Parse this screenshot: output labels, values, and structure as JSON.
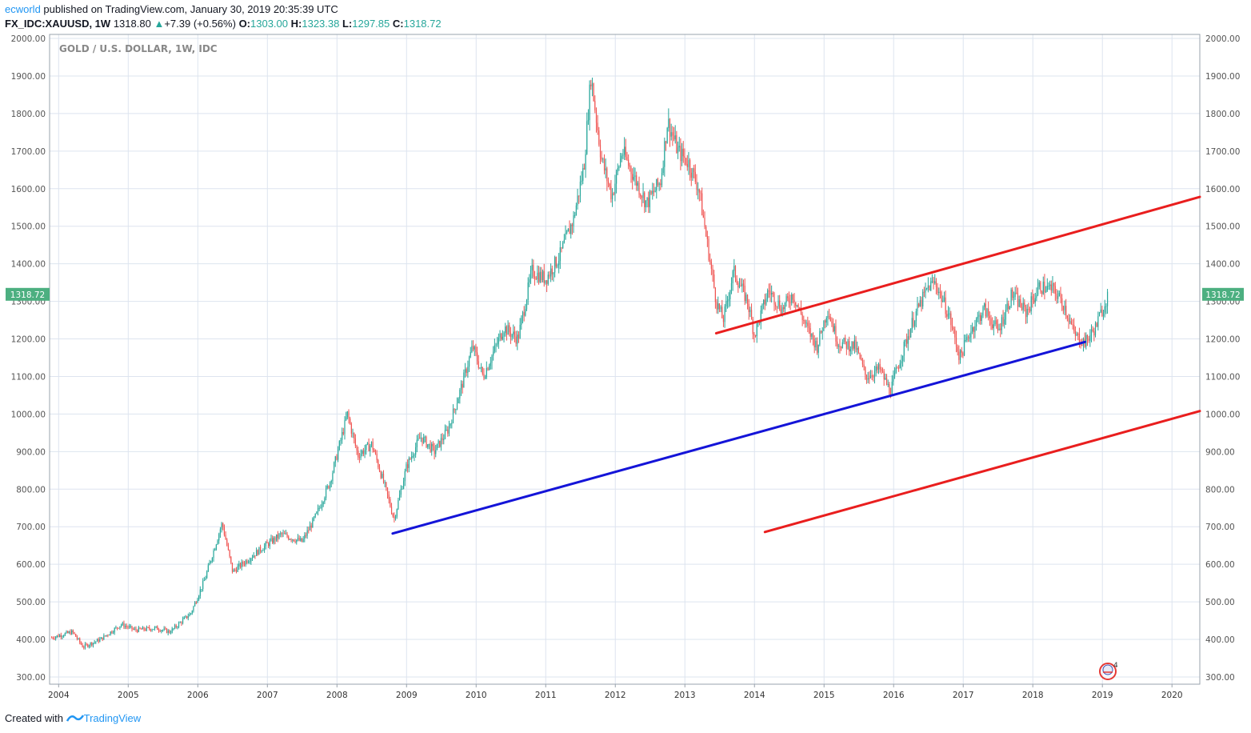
{
  "header": {
    "author": "ecworld",
    "published": "published on TradingView.com, January 30, 2019 20:35:39 UTC",
    "symbol": "FX_IDC:XAUUSD, 1W",
    "last": "1318.80",
    "arrow": "▲",
    "change": "+7.39 (+0.56%)",
    "open_label": "O:",
    "open": "1303.00",
    "high_label": "H:",
    "high": "1323.38",
    "low_label": "L:",
    "low": "1297.85",
    "close_label": "C:",
    "close": "1318.72"
  },
  "footer": {
    "created": "Created with",
    "brand": "TradingView"
  },
  "colors": {
    "up": "#26a69a",
    "down": "#ef5350",
    "red_line": "#e91e1e",
    "blue_line": "#1414d8",
    "grid": "#dde4ef"
  },
  "chart_data": {
    "type": "candlestick",
    "title": "GOLD / U.S. DOLLAR, 1W, IDC",
    "ylim": [
      290,
      2010
    ],
    "y_ticks": [
      "2000.00",
      "1900.00",
      "1800.00",
      "1700.00",
      "1600.00",
      "1500.00",
      "1400.00",
      "1300.00",
      "1200.00",
      "1100.00",
      "1000.00",
      "900.00",
      "800.00",
      "700.00",
      "600.00",
      "500.00",
      "400.00",
      "300.00"
    ],
    "x_ticks": [
      "2004",
      "2005",
      "2006",
      "2007",
      "2008",
      "2009",
      "2010",
      "2011",
      "2012",
      "2013",
      "2014",
      "2015",
      "2016",
      "2017",
      "2018",
      "2019",
      "2020"
    ],
    "x_range": [
      2003.87,
      2020.4
    ],
    "last_price_label": "1318.72",
    "grid": true,
    "price_path": [
      [
        2003.9,
        405
      ],
      [
        2004.2,
        420
      ],
      [
        2004.35,
        380
      ],
      [
        2004.6,
        400
      ],
      [
        2004.9,
        440
      ],
      [
        2005.1,
        425
      ],
      [
        2005.4,
        430
      ],
      [
        2005.6,
        420
      ],
      [
        2005.9,
        470
      ],
      [
        2006.1,
        560
      ],
      [
        2006.35,
        710
      ],
      [
        2006.5,
        580
      ],
      [
        2006.7,
        610
      ],
      [
        2006.9,
        640
      ],
      [
        2007.2,
        680
      ],
      [
        2007.5,
        660
      ],
      [
        2007.7,
        730
      ],
      [
        2007.9,
        820
      ],
      [
        2008.15,
        1000
      ],
      [
        2008.3,
        890
      ],
      [
        2008.5,
        920
      ],
      [
        2008.7,
        800
      ],
      [
        2008.82,
        720
      ],
      [
        2009.0,
        860
      ],
      [
        2009.2,
        940
      ],
      [
        2009.4,
        900
      ],
      [
        2009.6,
        960
      ],
      [
        2009.8,
        1080
      ],
      [
        2009.95,
        1180
      ],
      [
        2010.1,
        1100
      ],
      [
        2010.4,
        1230
      ],
      [
        2010.6,
        1200
      ],
      [
        2010.8,
        1380
      ],
      [
        2011.0,
        1360
      ],
      [
        2011.2,
        1420
      ],
      [
        2011.4,
        1520
      ],
      [
        2011.55,
        1660
      ],
      [
        2011.65,
        1900
      ],
      [
        2011.8,
        1680
      ],
      [
        2011.95,
        1580
      ],
      [
        2012.1,
        1700
      ],
      [
        2012.3,
        1620
      ],
      [
        2012.45,
        1560
      ],
      [
        2012.65,
        1620
      ],
      [
        2012.75,
        1780
      ],
      [
        2012.9,
        1700
      ],
      [
        2013.05,
        1670
      ],
      [
        2013.2,
        1600
      ],
      [
        2013.3,
        1480
      ],
      [
        2013.45,
        1300
      ],
      [
        2013.55,
        1250
      ],
      [
        2013.7,
        1380
      ],
      [
        2013.9,
        1300
      ],
      [
        2014.0,
        1210
      ],
      [
        2014.2,
        1330
      ],
      [
        2014.4,
        1280
      ],
      [
        2014.55,
        1320
      ],
      [
        2014.75,
        1230
      ],
      [
        2014.9,
        1180
      ],
      [
        2015.05,
        1280
      ],
      [
        2015.2,
        1190
      ],
      [
        2015.45,
        1180
      ],
      [
        2015.6,
        1100
      ],
      [
        2015.8,
        1120
      ],
      [
        2015.95,
        1060
      ],
      [
        2016.1,
        1150
      ],
      [
        2016.3,
        1260
      ],
      [
        2016.5,
        1340
      ],
      [
        2016.6,
        1350
      ],
      [
        2016.8,
        1260
      ],
      [
        2016.95,
        1150
      ],
      [
        2017.1,
        1220
      ],
      [
        2017.3,
        1280
      ],
      [
        2017.5,
        1220
      ],
      [
        2017.7,
        1320
      ],
      [
        2017.9,
        1270
      ],
      [
        2018.1,
        1340
      ],
      [
        2018.3,
        1330
      ],
      [
        2018.45,
        1290
      ],
      [
        2018.6,
        1210
      ],
      [
        2018.75,
        1190
      ],
      [
        2018.9,
        1230
      ],
      [
        2019.08,
        1318
      ]
    ],
    "trend_lines": [
      {
        "color": "red",
        "from": [
          2013.45,
          1215
        ],
        "to": [
          2020.4,
          1578
        ]
      },
      {
        "color": "blue",
        "from": [
          2008.8,
          682
        ],
        "to": [
          2018.75,
          1192
        ]
      },
      {
        "color": "red",
        "from": [
          2014.15,
          686
        ],
        "to": [
          2020.4,
          1008
        ]
      }
    ]
  }
}
